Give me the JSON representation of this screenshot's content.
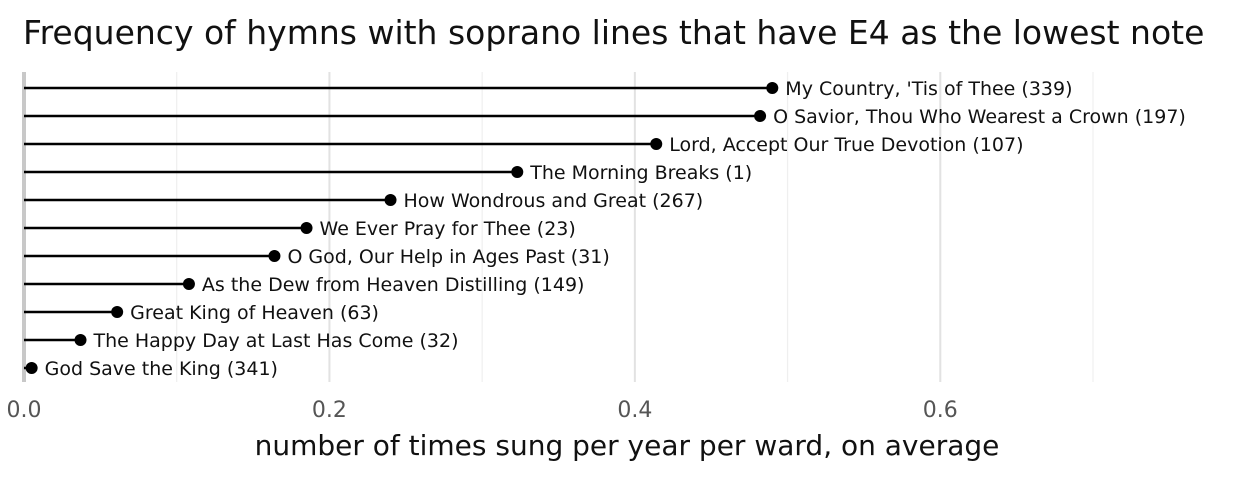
{
  "chart_data": {
    "type": "lollipop",
    "title": "Frequency of hymns with soprano lines that have E4 as the lowest note",
    "xlabel": "number of times sung per year per ward, on average",
    "ylabel": "",
    "xlim": [
      0,
      0.7
    ],
    "x_ticks": [
      0.0,
      0.2,
      0.4,
      0.6
    ],
    "x_tick_labels": [
      "0.0",
      "0.2",
      "0.4",
      "0.6"
    ],
    "x_minor_ticks": [
      0.1,
      0.3,
      0.5,
      0.7
    ],
    "grid": true,
    "points": [
      {
        "label": "My Country, 'Tis of Thee (339)",
        "value": 0.49
      },
      {
        "label": "O Savior, Thou Who Wearest a Crown (197)",
        "value": 0.482
      },
      {
        "label": "Lord, Accept Our True Devotion (107)",
        "value": 0.414
      },
      {
        "label": "The Morning Breaks (1)",
        "value": 0.323
      },
      {
        "label": "How Wondrous and Great (267)",
        "value": 0.24
      },
      {
        "label": "We Ever Pray for Thee (23)",
        "value": 0.185
      },
      {
        "label": "O God, Our Help in Ages Past (31)",
        "value": 0.164
      },
      {
        "label": "As the Dew from Heaven Distilling (149)",
        "value": 0.108
      },
      {
        "label": "Great King of Heaven (63)",
        "value": 0.061
      },
      {
        "label": "The Happy Day at Last Has Come (32)",
        "value": 0.037
      },
      {
        "label": "God Save the King (341)",
        "value": 0.005
      }
    ]
  }
}
